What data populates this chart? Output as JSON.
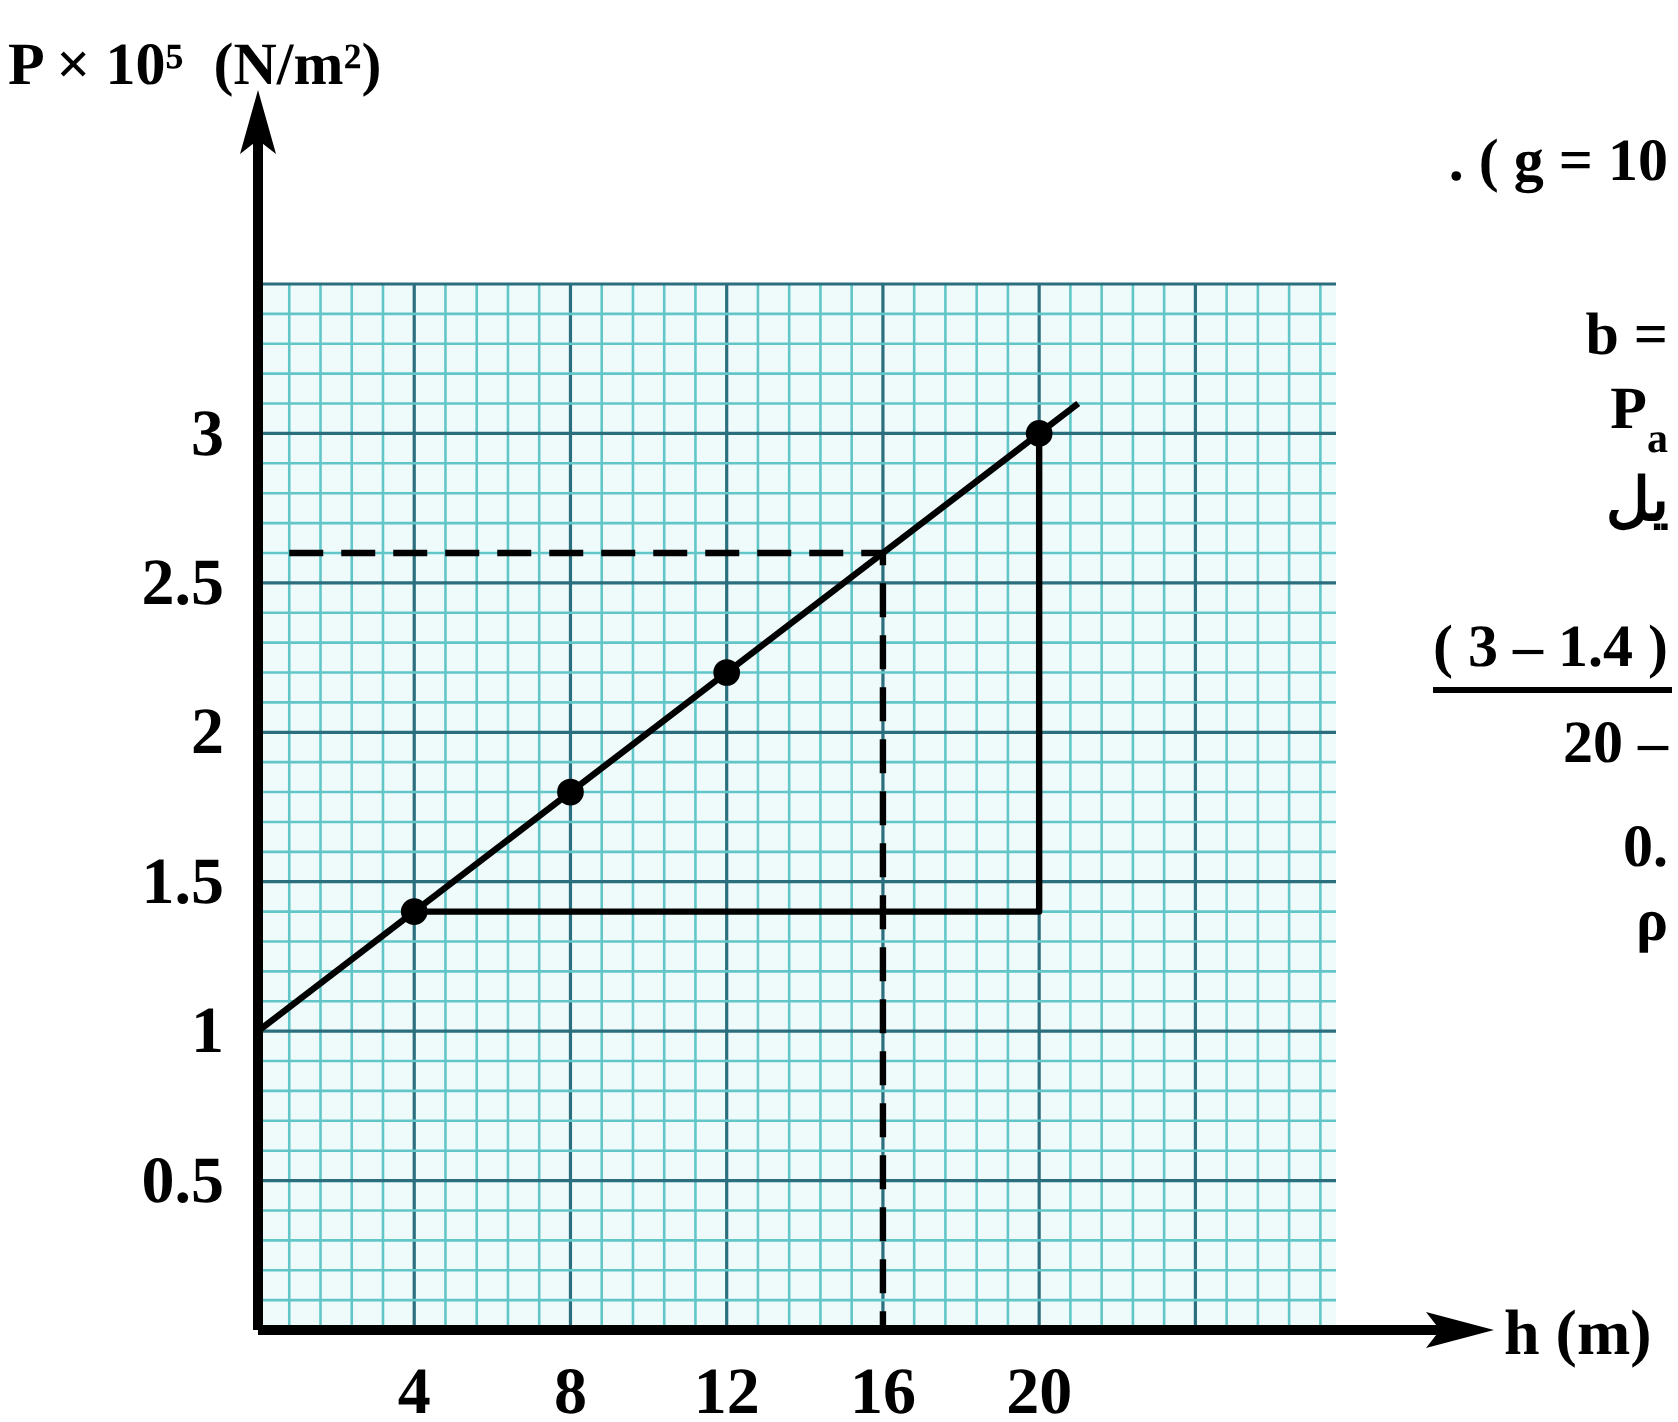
{
  "chart_data": {
    "type": "scatter",
    "xlabel": "h (m)",
    "ylabel": "P × 10⁵  (N/m²)",
    "xlim": [
      0,
      27.6
    ],
    "ylim": [
      0,
      3.5
    ],
    "xticks": [
      {
        "value": 0.8,
        "label": null
      },
      {
        "value": 1.6,
        "label": null
      },
      {
        "value": 2.4,
        "label": null
      },
      {
        "value": 3.2,
        "label": null
      },
      4,
      {
        "value": 4.8,
        "label": null
      },
      {
        "value": 5.6,
        "label": null
      },
      {
        "value": 6.4,
        "label": null
      },
      {
        "value": 7.2,
        "label": null
      },
      8,
      {
        "value": 8.8,
        "label": null
      },
      {
        "value": 9.6,
        "label": null
      },
      {
        "value": 10.4,
        "label": null
      },
      {
        "value": 11.2,
        "label": null
      },
      12,
      {
        "value": 12.8,
        "label": null
      },
      {
        "value": 13.6,
        "label": null
      },
      {
        "value": 14.4,
        "label": null
      },
      {
        "value": 15.2,
        "label": null
      },
      16,
      {
        "value": 16.8,
        "label": null
      },
      {
        "value": 17.6,
        "label": null
      },
      {
        "value": 18.4,
        "label": null
      },
      {
        "value": 19.2,
        "label": null
      },
      20,
      {
        "value": 20.8,
        "label": null
      },
      {
        "value": 21.6,
        "label": null
      },
      {
        "value": 22.4,
        "label": null
      },
      {
        "value": 23.2,
        "label": null
      },
      {
        "value": 24,
        "label": null
      },
      {
        "value": 24.8,
        "label": null
      },
      {
        "value": 25.6,
        "label": null
      },
      {
        "value": 26.4,
        "label": null
      },
      {
        "value": 27.2,
        "label": null
      }
    ],
    "yticks": [
      {
        "value": 0.1,
        "label": null
      },
      {
        "value": 0.2,
        "label": null
      },
      {
        "value": 0.3,
        "label": null
      },
      {
        "value": 0.4,
        "label": null
      },
      0.5,
      {
        "value": 0.6,
        "label": null
      },
      {
        "value": 0.7,
        "label": null
      },
      {
        "value": 0.8,
        "label": null
      },
      {
        "value": 0.9,
        "label": null
      },
      1,
      {
        "value": 1.1,
        "label": null
      },
      {
        "value": 1.2,
        "label": null
      },
      {
        "value": 1.3,
        "label": null
      },
      {
        "value": 1.4,
        "label": null
      },
      1.5,
      {
        "value": 1.6,
        "label": null
      },
      {
        "value": 1.7,
        "label": null
      },
      {
        "value": 1.8,
        "label": null
      },
      {
        "value": 1.9,
        "label": null
      },
      2,
      {
        "value": 2.1,
        "label": null
      },
      {
        "value": 2.2,
        "label": null
      },
      {
        "value": 2.3,
        "label": null
      },
      {
        "value": 2.4,
        "label": null
      },
      2.5,
      {
        "value": 2.6,
        "label": null
      },
      {
        "value": 2.7,
        "label": null
      },
      {
        "value": 2.8,
        "label": null
      },
      {
        "value": 2.9,
        "label": null
      },
      3,
      {
        "value": 3.1,
        "label": null
      },
      {
        "value": 3.2,
        "label": null
      },
      {
        "value": 3.3,
        "label": null
      },
      {
        "value": 3.4,
        "label": null
      },
      {
        "value": 3.5,
        "label": null
      }
    ],
    "grid": true,
    "series": [
      {
        "type": "line",
        "color": "#000000",
        "x": [
          0,
          21
        ],
        "values": [
          1,
          3.1
        ],
        "marker": "none",
        "line_style": "solid"
      },
      {
        "type": "line",
        "color": "#000000",
        "x": [
          4,
          20,
          20
        ],
        "values": [
          1.4,
          1.4,
          3
        ],
        "marker": "none",
        "line_style": "solid"
      },
      {
        "type": "line",
        "color": "#000000",
        "x": [
          0.8,
          16,
          16
        ],
        "values": [
          2.6,
          2.6,
          0
        ],
        "marker": "none",
        "line_style": "dashed"
      },
      {
        "type": "scatter",
        "color": "#000000",
        "x": [
          4,
          8,
          12,
          20
        ],
        "values": [
          1.4,
          1.8,
          2.2,
          3
        ],
        "marker": "circle"
      }
    ],
    "annotations": [
      ". ( g = 10",
      "b =",
      "P$_{a}$",
      "يل",
      "( 3 – 1.4 )",
      "20 –",
      "0.",
      "ρ"
    ]
  }
}
